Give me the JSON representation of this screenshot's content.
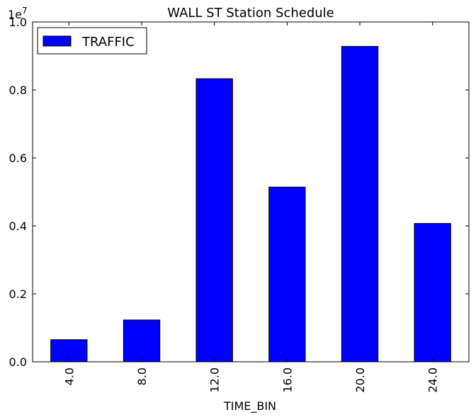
{
  "chart_data": {
    "type": "bar",
    "title": "WALL ST Station Schedule",
    "xlabel": "TIME_BIN",
    "ylabel": "",
    "y_offset_label": "1e7",
    "categories": [
      "4.0",
      "8.0",
      "12.0",
      "16.0",
      "20.0",
      "24.0"
    ],
    "series": [
      {
        "name": "TRAFFIC",
        "color": "#0000ff",
        "values": [
          650000,
          1230000,
          8330000,
          5140000,
          9280000,
          4070000
        ]
      }
    ],
    "ylim": [
      0,
      10000000
    ],
    "yticks": [
      0,
      2000000,
      4000000,
      6000000,
      8000000,
      10000000
    ],
    "ytick_labels": [
      "0.0",
      "0.2",
      "0.4",
      "0.6",
      "0.8",
      "1.0"
    ],
    "legend_position": "top-left",
    "grid": false
  }
}
